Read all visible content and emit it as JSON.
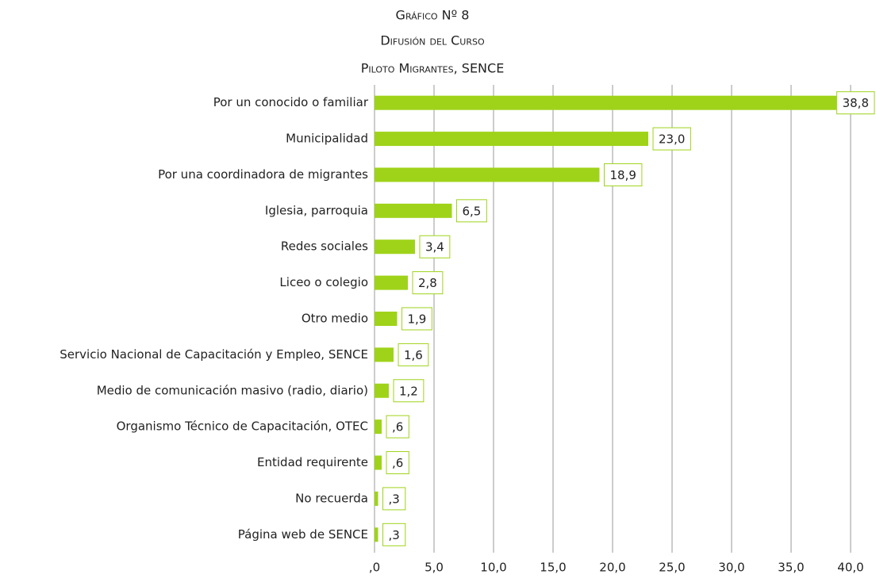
{
  "chart_data": {
    "type": "barh",
    "title": [
      "Gráfico Nº 8",
      "Difusión del Curso",
      "Piloto Migrantes, SENCE"
    ],
    "categories": [
      "Por un conocido o familiar",
      "Municipalidad",
      "Por una coordinadora de migrantes",
      "Iglesia, parroquia",
      "Redes sociales",
      "Liceo o colegio",
      "Otro medio",
      "Servicio Nacional de Capacitación y Empleo, SENCE",
      "Medio de comunicación masivo (radio, diario)",
      "Organismo Técnico de Capacitación, OTEC",
      "Entidad requirente",
      "No recuerda",
      "Página web de SENCE"
    ],
    "values": [
      38.8,
      23.0,
      18.9,
      6.5,
      3.4,
      2.8,
      1.9,
      1.6,
      1.2,
      0.6,
      0.6,
      0.3,
      0.3
    ],
    "value_labels": [
      "38,8",
      "23,0",
      "18,9",
      "6,5",
      "3,4",
      "2,8",
      "1,9",
      "1,6",
      "1,2",
      ",6",
      ",6",
      ",3",
      ",3"
    ],
    "color": "#9fd31a",
    "xlim": [
      0,
      40
    ],
    "xticks": [
      {
        "value": 0,
        "label": ",0"
      },
      {
        "value": 5,
        "label": "5,0"
      },
      {
        "value": 10,
        "label": "10,0"
      },
      {
        "value": 15,
        "label": "15,0"
      },
      {
        "value": 20,
        "label": "20,0"
      },
      {
        "value": 25,
        "label": "25,0"
      },
      {
        "value": 30,
        "label": "30,0"
      },
      {
        "value": 35,
        "label": "35,0"
      },
      {
        "value": 40,
        "label": "40,0"
      }
    ],
    "grid": true
  }
}
